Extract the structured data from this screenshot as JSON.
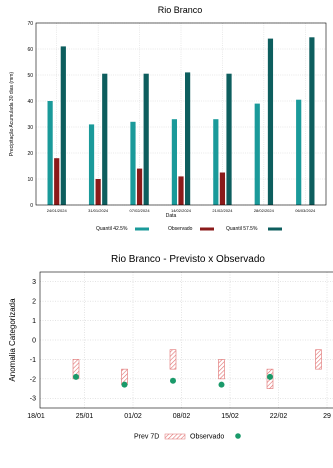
{
  "chart_data": [
    {
      "type": "bar",
      "title": "Rio Branco",
      "xlabel": "Data",
      "ylabel": "Precipitação Acumulada 30 dias (mm)",
      "ylim": [
        0,
        70
      ],
      "yticks": [
        0,
        10,
        20,
        30,
        40,
        50,
        60,
        70
      ],
      "categories": [
        "24/01/2024",
        "31/01/2024",
        "07/02/2024",
        "14/02/2024",
        "21/02/2024",
        "28/02/2024",
        "06/03/2024"
      ],
      "series": [
        {
          "name": "Quantil 42.5%",
          "color": "#1a9a9a",
          "values": [
            40,
            31,
            32,
            33,
            33,
            39,
            40.5
          ]
        },
        {
          "name": "Observado",
          "color": "#8b1a1a",
          "values": [
            18,
            10,
            14,
            11,
            12.5,
            null,
            null
          ]
        },
        {
          "name": "Quantil 57.5%",
          "color": "#0d5e5e",
          "values": [
            61,
            50.5,
            50.5,
            51,
            50.5,
            64,
            64.5
          ]
        }
      ],
      "grid": true,
      "legend": "bottom"
    },
    {
      "type": "scatter",
      "title": "Rio Branco - Previsto x Observado",
      "ylabel": "Anomalia Categorizada",
      "ylim": [
        -3.5,
        3.5
      ],
      "yticks": [
        -3,
        -2,
        -1,
        0,
        1,
        2,
        3
      ],
      "xticks": [
        "18/01",
        "25/01",
        "01/02",
        "08/02",
        "15/02",
        "22/02",
        "29"
      ],
      "series": [
        {
          "name": "Prev 7D",
          "color": "#e8a0a0",
          "ranges": [
            [
              -2,
              -1
            ],
            [
              -2.3,
              -1.5
            ],
            [
              -1.5,
              -0.5
            ],
            [
              -2,
              -1
            ],
            [
              -2.5,
              -1.5
            ],
            [
              -1.5,
              -0.5
            ]
          ]
        },
        {
          "name": "Observado",
          "color": "#1a9a6a",
          "values": [
            -1.9,
            -2.3,
            -2.1,
            -2.3,
            -1.9,
            null
          ]
        }
      ],
      "grid": true,
      "legend": "bottom"
    }
  ]
}
